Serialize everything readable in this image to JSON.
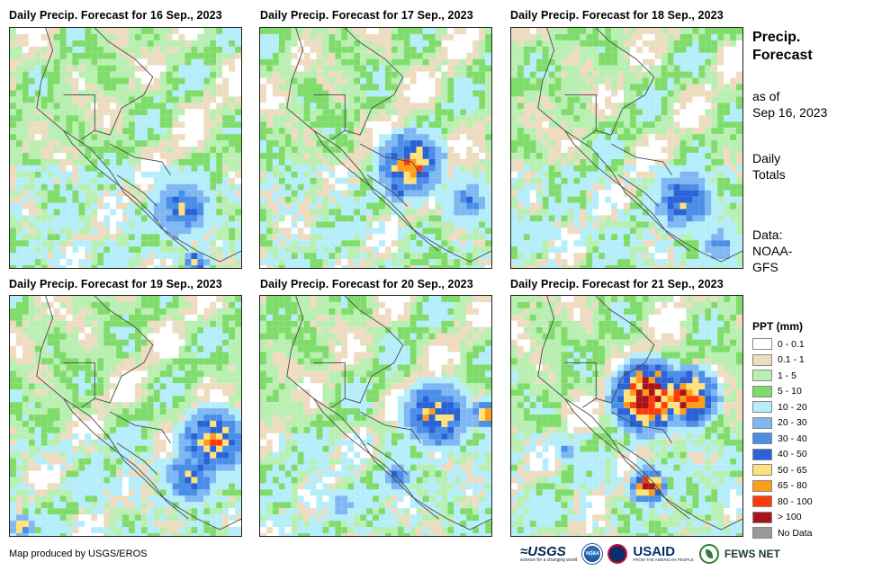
{
  "panels": [
    {
      "title": "Daily Precip. Forecast for 16 Sep., 2023",
      "day": 0
    },
    {
      "title": "Daily Precip. Forecast for 17 Sep., 2023",
      "day": 1
    },
    {
      "title": "Daily Precip. Forecast for 18 Sep., 2023",
      "day": 2
    },
    {
      "title": "Daily Precip. Forecast for 19 Sep., 2023",
      "day": 3
    },
    {
      "title": "Daily Precip. Forecast for 20 Sep., 2023",
      "day": 4
    },
    {
      "title": "Daily Precip. Forecast for 21 Sep., 2023",
      "day": 5
    }
  ],
  "sidebar": {
    "title_line1": "Precip.",
    "title_line2": "Forecast",
    "asof_line1": "as of",
    "asof_line2": "Sep 16, 2023",
    "totals_line1": "Daily",
    "totals_line2": "Totals",
    "data_line1": "Data:",
    "data_line2": "NOAA-",
    "data_line3": "GFS"
  },
  "legend": {
    "title": "PPT (mm)",
    "items": [
      {
        "label": "0 - 0.1",
        "color": "#ffffff"
      },
      {
        "label": "0.1 - 1",
        "color": "#eddcc0"
      },
      {
        "label": "1 - 5",
        "color": "#b9efb2"
      },
      {
        "label": "5 - 10",
        "color": "#7fdc6b"
      },
      {
        "label": "10 - 20",
        "color": "#b5eefa"
      },
      {
        "label": "20 - 30",
        "color": "#7fb7f2"
      },
      {
        "label": "30 - 40",
        "color": "#4a8ee8"
      },
      {
        "label": "40 - 50",
        "color": "#2a62d8"
      },
      {
        "label": "50 - 65",
        "color": "#ffe37a"
      },
      {
        "label": "65 - 80",
        "color": "#ff9c1a"
      },
      {
        "label": "80 - 100",
        "color": "#ff3a0a"
      },
      {
        "label": "> 100",
        "color": "#a8141a"
      },
      {
        "label": "No Data",
        "color": "#999999"
      }
    ]
  },
  "footer": {
    "credit": "Map produced by USGS/EROS",
    "logo_usgs": "≈USGS",
    "logo_usgs_sub": "science for a changing world",
    "logo_noaa": "NOAA",
    "logo_usaid": "USAID",
    "logo_usaid_sub": "FROM THE AMERICAN PEOPLE",
    "logo_fews": "FEWS NET"
  }
}
